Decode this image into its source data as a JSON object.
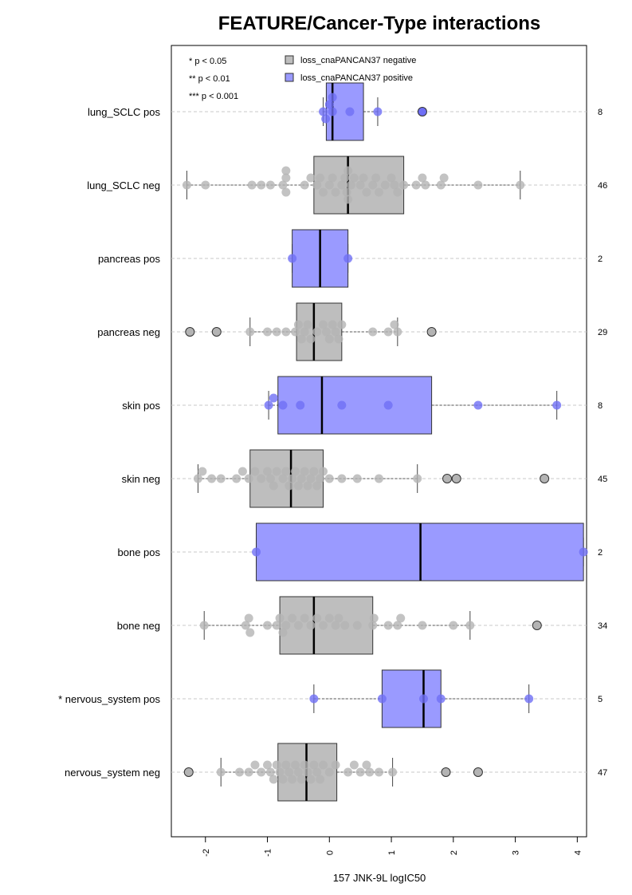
{
  "chart_data": {
    "type": "box",
    "title": "FEATURE/Cancer-Type interactions",
    "xlabel": "157 JNK-9L logIC50",
    "ylabel": "",
    "xlim": [
      -2.55,
      4.15
    ],
    "x_ticks": [
      -2,
      -1,
      0,
      1,
      2,
      3,
      4
    ],
    "x_tick_labels": [
      "-2",
      "-1",
      "0",
      "1",
      "2",
      "3",
      "4"
    ],
    "grid": "horizontal dashed lines",
    "significance_legend": [
      "* p < 0.05",
      "** p < 0.01",
      "*** p < 0.001"
    ],
    "legend": [
      {
        "label": "loss_cnaPANCAN37 negative",
        "color": "#bebebe"
      },
      {
        "label": "loss_cnaPANCAN37 positive",
        "color": "#9a9aff"
      }
    ],
    "legend_position": "top",
    "colors": {
      "negative_box": "#bebebe",
      "positive_box": "#9a9aff",
      "negative_point": "#b4b4b4",
      "positive_point": "#6f6ff5"
    },
    "groups": [
      {
        "label": "lung_SCLC pos",
        "group": "positive",
        "n": "8",
        "whisker_low": -0.1,
        "q1": -0.05,
        "median": 0.05,
        "q3": 0.55,
        "whisker_high": 0.78,
        "points": [
          0.05,
          0.0,
          -0.06,
          -0.1,
          0.33,
          0.78,
          0.05
        ],
        "outliers": [
          1.5
        ]
      },
      {
        "label": "lung_SCLC neg",
        "group": "negative",
        "n": "46",
        "whisker_low": -2.3,
        "q1": -0.25,
        "median": 0.3,
        "q3": 1.2,
        "whisker_high": 3.08,
        "points": [
          -2.3,
          -2.0,
          -1.25,
          -1.1,
          -0.95,
          -0.75,
          -0.7,
          -0.7,
          -0.7,
          -0.4,
          -0.3,
          -0.2,
          -0.15,
          -0.1,
          0.0,
          0.05,
          0.1,
          0.2,
          0.25,
          0.28,
          0.3,
          0.3,
          0.35,
          0.4,
          0.5,
          0.55,
          0.6,
          0.7,
          0.75,
          0.8,
          0.9,
          1.0,
          1.05,
          1.1,
          1.2,
          1.4,
          1.5,
          1.55,
          1.8,
          1.85,
          2.4,
          3.08
        ],
        "outliers": []
      },
      {
        "label": "pancreas pos",
        "group": "positive",
        "n": "2",
        "whisker_low": -0.6,
        "q1": -0.6,
        "median": -0.15,
        "q3": 0.3,
        "whisker_high": 0.3,
        "points": [
          -0.6,
          0.3
        ],
        "outliers": []
      },
      {
        "label": "pancreas neg",
        "group": "negative",
        "n": "29",
        "whisker_low": -1.28,
        "q1": -0.53,
        "median": -0.25,
        "q3": 0.2,
        "whisker_high": 1.1,
        "points": [
          -1.28,
          -1.0,
          -0.85,
          -0.7,
          -0.55,
          -0.5,
          -0.45,
          -0.4,
          -0.35,
          -0.3,
          -0.2,
          -0.1,
          -0.05,
          0.0,
          0.05,
          0.1,
          0.15,
          0.2,
          0.7,
          0.95,
          1.05,
          1.1
        ],
        "outliers": [
          -2.25,
          -1.82,
          1.65
        ]
      },
      {
        "label": "skin pos",
        "group": "positive",
        "n": "8",
        "whisker_low": -0.98,
        "q1": -0.83,
        "median": -0.12,
        "q3": 1.65,
        "whisker_high": 3.67,
        "points": [
          -0.98,
          -0.9,
          -0.75,
          -0.47,
          0.2,
          0.95,
          2.4,
          3.67
        ],
        "outliers": []
      },
      {
        "label": "skin neg",
        "group": "negative",
        "n": "45",
        "whisker_low": -2.12,
        "q1": -1.28,
        "median": -0.62,
        "q3": -0.1,
        "whisker_high": 1.42,
        "points": [
          -2.12,
          -2.05,
          -1.9,
          -1.75,
          -1.5,
          -1.4,
          -1.3,
          -1.2,
          -1.1,
          -1.0,
          -0.95,
          -0.9,
          -0.85,
          -0.75,
          -0.7,
          -0.65,
          -0.6,
          -0.55,
          -0.5,
          -0.45,
          -0.4,
          -0.35,
          -0.3,
          -0.25,
          -0.2,
          -0.15,
          -0.1,
          0.0,
          0.2,
          0.45,
          0.8,
          1.42
        ],
        "outliers": [
          1.9,
          2.05,
          3.47
        ]
      },
      {
        "label": "bone pos",
        "group": "positive",
        "n": "2",
        "whisker_low": -1.18,
        "q1": -1.18,
        "median": 1.47,
        "q3": 4.1,
        "whisker_high": 4.1,
        "points": [
          -1.18,
          4.1
        ],
        "outliers": []
      },
      {
        "label": "bone neg",
        "group": "negative",
        "n": "34",
        "whisker_low": -2.02,
        "q1": -0.8,
        "median": -0.25,
        "q3": 0.7,
        "whisker_high": 2.27,
        "points": [
          -2.02,
          -1.35,
          -1.3,
          -1.28,
          -1.0,
          -0.85,
          -0.8,
          -0.75,
          -0.7,
          -0.6,
          -0.5,
          -0.4,
          -0.3,
          -0.2,
          -0.1,
          0.0,
          0.1,
          0.15,
          0.25,
          0.45,
          0.7,
          0.72,
          0.95,
          1.1,
          1.15,
          1.5,
          2.0,
          2.27
        ],
        "outliers": [
          3.35
        ]
      },
      {
        "label": "* nervous_system pos",
        "group": "positive",
        "n": "5",
        "whisker_low": -0.25,
        "q1": 0.85,
        "median": 1.52,
        "q3": 1.8,
        "whisker_high": 3.22,
        "points": [
          -0.25,
          0.85,
          1.52,
          1.8,
          3.22
        ],
        "outliers": []
      },
      {
        "label": "nervous_system neg",
        "group": "negative",
        "n": "47",
        "whisker_low": -1.75,
        "q1": -0.83,
        "median": -0.37,
        "q3": 0.12,
        "whisker_high": 1.02,
        "points": [
          -1.75,
          -1.45,
          -1.3,
          -1.2,
          -1.1,
          -1.0,
          -0.95,
          -0.9,
          -0.85,
          -0.8,
          -0.75,
          -0.7,
          -0.65,
          -0.6,
          -0.55,
          -0.5,
          -0.45,
          -0.4,
          -0.35,
          -0.3,
          -0.25,
          -0.2,
          -0.15,
          -0.1,
          0.0,
          0.1,
          0.3,
          0.4,
          0.5,
          0.6,
          0.65,
          0.8,
          1.02
        ],
        "outliers": [
          -2.27,
          1.88,
          2.4
        ]
      }
    ]
  }
}
